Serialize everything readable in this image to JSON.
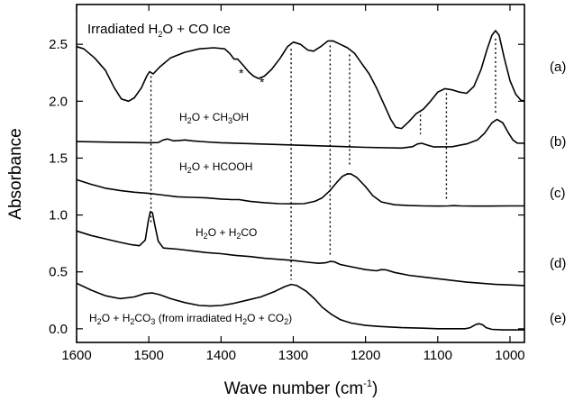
{
  "chart_data": {
    "type": "line",
    "xlabel": "Wave number (cm⁻¹)",
    "ylabel": "Absorbance",
    "xlim": [
      1600,
      980
    ],
    "ylim": [
      -0.12,
      2.85
    ],
    "x_reversed": true,
    "xticks": [
      1600,
      1500,
      1400,
      1300,
      1200,
      1100,
      1000
    ],
    "yticks": [
      0.0,
      0.5,
      1.0,
      1.5,
      2.0,
      2.5
    ],
    "xtick_labels": [
      "1600",
      "1500",
      "1400",
      "1300",
      "1200",
      "1100",
      "1000"
    ],
    "ytick_labels": [
      "0.0",
      "0.5",
      "1.0",
      "1.5",
      "2.0",
      "2.5"
    ],
    "series": [
      {
        "label": "(a)",
        "annotation": "Irradiated H2O + CO Ice",
        "points": [
          [
            1600,
            2.48
          ],
          [
            1590,
            2.46
          ],
          [
            1575,
            2.38
          ],
          [
            1560,
            2.27
          ],
          [
            1548,
            2.12
          ],
          [
            1538,
            2.02
          ],
          [
            1528,
            2.0
          ],
          [
            1520,
            2.03
          ],
          [
            1510,
            2.12
          ],
          [
            1503,
            2.22
          ],
          [
            1499,
            2.26
          ],
          [
            1494,
            2.24
          ],
          [
            1485,
            2.3
          ],
          [
            1470,
            2.38
          ],
          [
            1450,
            2.43
          ],
          [
            1430,
            2.46
          ],
          [
            1410,
            2.47
          ],
          [
            1395,
            2.46
          ],
          [
            1388,
            2.42
          ],
          [
            1382,
            2.37
          ],
          [
            1377,
            2.37
          ],
          [
            1370,
            2.32
          ],
          [
            1362,
            2.26
          ],
          [
            1355,
            2.22
          ],
          [
            1348,
            2.2
          ],
          [
            1340,
            2.22
          ],
          [
            1330,
            2.28
          ],
          [
            1318,
            2.38
          ],
          [
            1308,
            2.48
          ],
          [
            1300,
            2.52
          ],
          [
            1290,
            2.5
          ],
          [
            1280,
            2.45
          ],
          [
            1272,
            2.44
          ],
          [
            1262,
            2.48
          ],
          [
            1252,
            2.53
          ],
          [
            1245,
            2.53
          ],
          [
            1235,
            2.5
          ],
          [
            1225,
            2.47
          ],
          [
            1215,
            2.42
          ],
          [
            1205,
            2.33
          ],
          [
            1195,
            2.24
          ],
          [
            1185,
            2.12
          ],
          [
            1175,
            1.98
          ],
          [
            1165,
            1.84
          ],
          [
            1158,
            1.77
          ],
          [
            1150,
            1.76
          ],
          [
            1140,
            1.82
          ],
          [
            1130,
            1.89
          ],
          [
            1120,
            1.93
          ],
          [
            1110,
            2.0
          ],
          [
            1100,
            2.08
          ],
          [
            1090,
            2.11
          ],
          [
            1080,
            2.1
          ],
          [
            1070,
            2.08
          ],
          [
            1060,
            2.07
          ],
          [
            1050,
            2.13
          ],
          [
            1040,
            2.28
          ],
          [
            1032,
            2.45
          ],
          [
            1025,
            2.58
          ],
          [
            1020,
            2.62
          ],
          [
            1015,
            2.58
          ],
          [
            1008,
            2.38
          ],
          [
            1000,
            2.18
          ],
          [
            992,
            2.06
          ],
          [
            985,
            2.01
          ],
          [
            980,
            2.0
          ]
        ]
      },
      {
        "label": "(b)",
        "annotation": "H2O + CH3OH",
        "points": [
          [
            1600,
            1.645
          ],
          [
            1550,
            1.64
          ],
          [
            1500,
            1.635
          ],
          [
            1487,
            1.637
          ],
          [
            1480,
            1.66
          ],
          [
            1474,
            1.668
          ],
          [
            1466,
            1.652
          ],
          [
            1458,
            1.655
          ],
          [
            1450,
            1.66
          ],
          [
            1440,
            1.652
          ],
          [
            1420,
            1.642
          ],
          [
            1400,
            1.635
          ],
          [
            1350,
            1.625
          ],
          [
            1300,
            1.615
          ],
          [
            1250,
            1.605
          ],
          [
            1200,
            1.595
          ],
          [
            1150,
            1.588
          ],
          [
            1135,
            1.6
          ],
          [
            1128,
            1.625
          ],
          [
            1122,
            1.63
          ],
          [
            1115,
            1.615
          ],
          [
            1105,
            1.598
          ],
          [
            1080,
            1.6
          ],
          [
            1060,
            1.625
          ],
          [
            1045,
            1.66
          ],
          [
            1035,
            1.72
          ],
          [
            1025,
            1.81
          ],
          [
            1018,
            1.84
          ],
          [
            1010,
            1.81
          ],
          [
            1003,
            1.73
          ],
          [
            996,
            1.66
          ],
          [
            990,
            1.632
          ],
          [
            980,
            1.63
          ]
        ]
      },
      {
        "label": "(c)",
        "annotation": "H2O + HCOOH",
        "points": [
          [
            1600,
            1.31
          ],
          [
            1580,
            1.27
          ],
          [
            1560,
            1.235
          ],
          [
            1540,
            1.215
          ],
          [
            1520,
            1.2
          ],
          [
            1500,
            1.19
          ],
          [
            1480,
            1.175
          ],
          [
            1460,
            1.16
          ],
          [
            1440,
            1.155
          ],
          [
            1420,
            1.15
          ],
          [
            1400,
            1.14
          ],
          [
            1385,
            1.135
          ],
          [
            1375,
            1.135
          ],
          [
            1360,
            1.12
          ],
          [
            1340,
            1.108
          ],
          [
            1320,
            1.1
          ],
          [
            1300,
            1.098
          ],
          [
            1285,
            1.1
          ],
          [
            1270,
            1.12
          ],
          [
            1260,
            1.15
          ],
          [
            1250,
            1.21
          ],
          [
            1240,
            1.285
          ],
          [
            1232,
            1.34
          ],
          [
            1225,
            1.362
          ],
          [
            1220,
            1.36
          ],
          [
            1212,
            1.33
          ],
          [
            1200,
            1.25
          ],
          [
            1190,
            1.17
          ],
          [
            1178,
            1.115
          ],
          [
            1160,
            1.09
          ],
          [
            1140,
            1.083
          ],
          [
            1120,
            1.08
          ],
          [
            1100,
            1.078
          ],
          [
            1085,
            1.08
          ],
          [
            1078,
            1.082
          ],
          [
            1068,
            1.08
          ],
          [
            1050,
            1.078
          ],
          [
            1030,
            1.078
          ],
          [
            1000,
            1.08
          ],
          [
            980,
            1.08
          ]
        ]
      },
      {
        "label": "(d)",
        "annotation": "H2O + H2CO",
        "points": [
          [
            1600,
            0.86
          ],
          [
            1580,
            0.82
          ],
          [
            1560,
            0.79
          ],
          [
            1540,
            0.76
          ],
          [
            1525,
            0.74
          ],
          [
            1513,
            0.73
          ],
          [
            1505,
            0.78
          ],
          [
            1501,
            0.94
          ],
          [
            1498,
            1.03
          ],
          [
            1495,
            1.02
          ],
          [
            1492,
            0.92
          ],
          [
            1487,
            0.77
          ],
          [
            1480,
            0.71
          ],
          [
            1460,
            0.7
          ],
          [
            1440,
            0.685
          ],
          [
            1420,
            0.67
          ],
          [
            1400,
            0.66
          ],
          [
            1380,
            0.645
          ],
          [
            1360,
            0.635
          ],
          [
            1340,
            0.62
          ],
          [
            1320,
            0.61
          ],
          [
            1300,
            0.6
          ],
          [
            1280,
            0.585
          ],
          [
            1265,
            0.575
          ],
          [
            1255,
            0.58
          ],
          [
            1249,
            0.592
          ],
          [
            1243,
            0.588
          ],
          [
            1235,
            0.565
          ],
          [
            1220,
            0.545
          ],
          [
            1200,
            0.52
          ],
          [
            1185,
            0.51
          ],
          [
            1178,
            0.52
          ],
          [
            1172,
            0.518
          ],
          [
            1160,
            0.495
          ],
          [
            1140,
            0.47
          ],
          [
            1120,
            0.455
          ],
          [
            1100,
            0.44
          ],
          [
            1080,
            0.425
          ],
          [
            1060,
            0.41
          ],
          [
            1040,
            0.4
          ],
          [
            1020,
            0.39
          ],
          [
            1000,
            0.385
          ],
          [
            980,
            0.38
          ]
        ]
      },
      {
        "label": "(e)",
        "annotation": "H2O + H2CO3 (from irradiated H2O + CO2)",
        "points": [
          [
            1600,
            0.4
          ],
          [
            1580,
            0.34
          ],
          [
            1560,
            0.29
          ],
          [
            1540,
            0.265
          ],
          [
            1520,
            0.28
          ],
          [
            1505,
            0.31
          ],
          [
            1495,
            0.315
          ],
          [
            1485,
            0.3
          ],
          [
            1470,
            0.265
          ],
          [
            1450,
            0.23
          ],
          [
            1430,
            0.205
          ],
          [
            1415,
            0.2
          ],
          [
            1400,
            0.205
          ],
          [
            1385,
            0.22
          ],
          [
            1365,
            0.25
          ],
          [
            1345,
            0.28
          ],
          [
            1325,
            0.33
          ],
          [
            1312,
            0.37
          ],
          [
            1303,
            0.39
          ],
          [
            1295,
            0.38
          ],
          [
            1282,
            0.33
          ],
          [
            1270,
            0.26
          ],
          [
            1260,
            0.19
          ],
          [
            1248,
            0.13
          ],
          [
            1235,
            0.08
          ],
          [
            1220,
            0.05
          ],
          [
            1200,
            0.03
          ],
          [
            1180,
            0.02
          ],
          [
            1150,
            0.01
          ],
          [
            1120,
            0.005
          ],
          [
            1100,
            0.0
          ],
          [
            1080,
            0.0
          ],
          [
            1062,
            0.0
          ],
          [
            1055,
            0.01
          ],
          [
            1048,
            0.035
          ],
          [
            1043,
            0.045
          ],
          [
            1038,
            0.035
          ],
          [
            1033,
            0.01
          ],
          [
            1025,
            -0.005
          ],
          [
            1010,
            -0.01
          ],
          [
            995,
            -0.01
          ],
          [
            980,
            -0.01
          ]
        ]
      }
    ],
    "markers": [
      {
        "x": 1497,
        "y_top": 2.22,
        "y_bottom": 0.92
      },
      {
        "x": 1303,
        "y_top": 2.46,
        "y_bottom": 0.43
      },
      {
        "x": 1249,
        "y_top": 2.49,
        "y_bottom": 0.63
      },
      {
        "x": 1222,
        "y_top": 2.41,
        "y_bottom": 1.42
      },
      {
        "x": 1124,
        "y_top": 1.92,
        "y_bottom": 1.71
      },
      {
        "x": 1088,
        "y_top": 2.07,
        "y_bottom": 1.14
      },
      {
        "x": 1020,
        "y_top": 2.55,
        "y_bottom": 1.9
      }
    ],
    "asterisks": [
      {
        "x": 1380,
        "y": 2.38
      },
      {
        "x": 1353,
        "y": 2.3
      }
    ]
  },
  "labels": {
    "title_a": {
      "pre": "Irradiated H",
      "sub": "2",
      "post": "O + CO Ice"
    },
    "title_b": {
      "p1": "H",
      "s1": "2",
      "p2": "O + CH",
      "s2": "3",
      "p3": "OH"
    },
    "title_c": {
      "p1": "H",
      "s1": "2",
      "p2": "O + HCOOH"
    },
    "title_d": {
      "p1": "H",
      "s1": "2",
      "p2": "O + H",
      "s2": "2",
      "p3": "CO"
    },
    "title_e": {
      "p1": "H",
      "s1": "2",
      "p2": "O + H",
      "s2": "2",
      "p3": "CO",
      "s3": "3",
      "p4": " (from irradiated H",
      "s4": "2",
      "p5": "O + CO",
      "s5": "2",
      "p6": ")"
    },
    "curve_tags": [
      "(a)",
      "(b)",
      "(c)",
      "(d)",
      "(e)"
    ],
    "asterisk": "*",
    "xaxis": {
      "pre": "Wave number (cm",
      "sup": "-1",
      "post": ")"
    },
    "yaxis": "Absorbance"
  }
}
